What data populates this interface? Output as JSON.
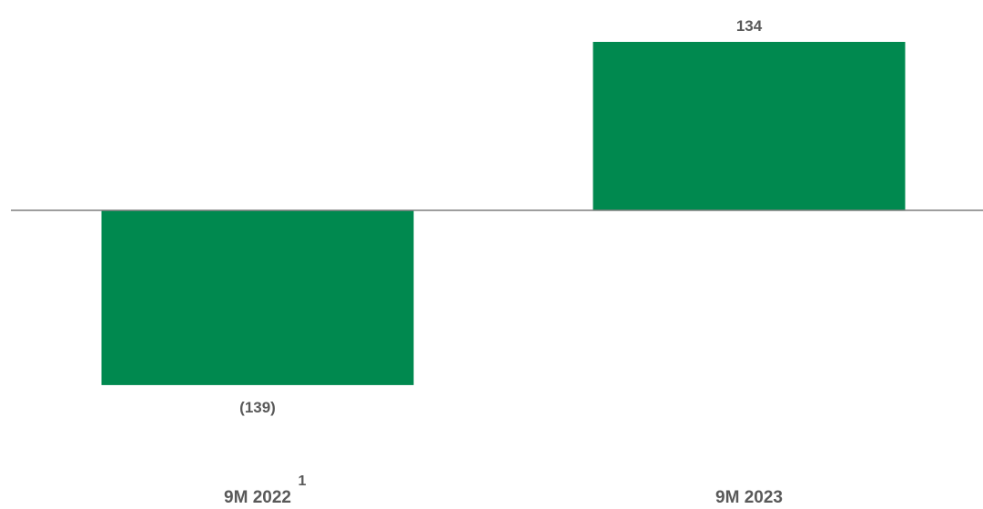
{
  "chart_data": {
    "type": "bar",
    "categories": [
      "9M 2022",
      "9M 2023"
    ],
    "category_footnotes": [
      "1",
      ""
    ],
    "values": [
      -139,
      134
    ],
    "data_labels": [
      "(139)",
      "134"
    ],
    "ylim": [
      -150,
      140
    ],
    "grid": false,
    "bar_color": "#00894F",
    "axis_color": "#7F7F7F",
    "label_color": "#595959"
  }
}
